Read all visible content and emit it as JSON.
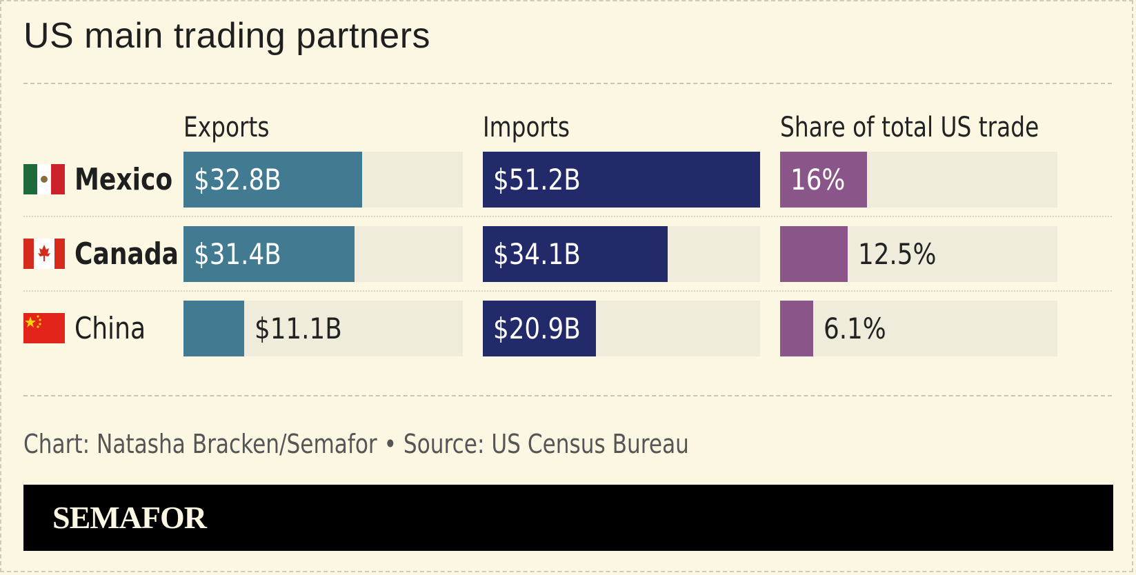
{
  "title": "US main trading partners",
  "source": "Chart: Natasha Bracken/Semafor • Source: US Census Bureau",
  "brand": "SEMAFOR",
  "colors": {
    "background": "#fbf7e3",
    "track": "#f0ecdb",
    "exports": "#427b91",
    "imports": "#232a6a",
    "share": "#8a5689",
    "footer": "#000000"
  },
  "chart_data": {
    "type": "bar",
    "title": "US main trading partners",
    "categories": [
      "Mexico",
      "Canada",
      "China"
    ],
    "series": [
      {
        "name": "Exports",
        "values": [
          32.8,
          31.4,
          11.1
        ],
        "labels": [
          "$32.8B",
          "$31.4B",
          "$11.1B"
        ],
        "max": 51.2
      },
      {
        "name": "Imports",
        "values": [
          51.2,
          34.1,
          20.9
        ],
        "labels": [
          "$51.2B",
          "$34.1B",
          "$20.9B"
        ],
        "max": 51.2
      },
      {
        "name": "Share of total US trade",
        "values": [
          16,
          12.5,
          6.1
        ],
        "labels": [
          "16%",
          "12.5%",
          "6.1%"
        ],
        "max": 51.2
      }
    ],
    "legend": "column-headers",
    "grid": false
  },
  "countries": [
    {
      "name": "Mexico",
      "flag": "mexico-flag-icon",
      "bold": true
    },
    {
      "name": "Canada",
      "flag": "canada-flag-icon",
      "bold": true
    },
    {
      "name": "China",
      "flag": "china-flag-icon",
      "bold": false
    }
  ]
}
